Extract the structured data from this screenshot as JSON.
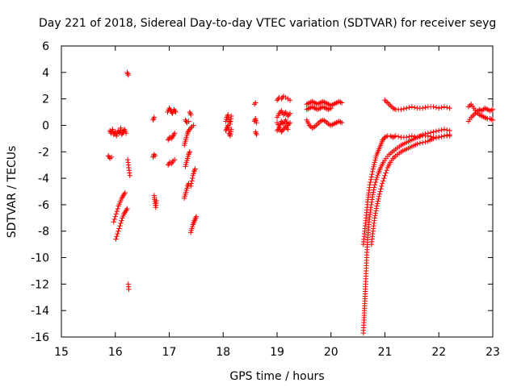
{
  "chart_data": {
    "type": "scatter",
    "title": "Day 221 of 2018, Sidereal Day-to-day VTEC variation (SDTVAR) for receiver seyg",
    "xlabel": "GPS time / hours",
    "ylabel": "SDTVAR / TECUs",
    "xlim": [
      15,
      23
    ],
    "ylim": [
      -16,
      6
    ],
    "xticks": [
      "15",
      "16",
      "17",
      "18",
      "19",
      "20",
      "21",
      "22",
      "23"
    ],
    "yticks": [
      "6",
      "4",
      "2",
      "0",
      "-2",
      "-4",
      "-6",
      "-8",
      "-10",
      "-12",
      "-14",
      "-16"
    ],
    "marker": "plus",
    "color": "#ff0000",
    "segments": [
      {
        "x": [
          15.87,
          15.9,
          15.93
        ],
        "y": [
          -2.3,
          -2.5,
          -2.4
        ]
      },
      {
        "x": [
          15.9,
          15.92,
          15.95,
          15.97,
          16.0,
          16.02,
          16.05,
          16.08,
          16.1,
          16.12,
          16.15,
          16.17,
          16.2
        ],
        "y": [
          -0.4,
          -0.6,
          -0.3,
          -0.7,
          -0.5,
          -0.8,
          -0.4,
          -0.6,
          -0.2,
          -0.7,
          -0.5,
          -0.3,
          -0.6
        ]
      },
      {
        "x": [
          15.97,
          16.0,
          16.03,
          16.06,
          16.09,
          16.12,
          16.15,
          16.18
        ],
        "y": [
          -7.3,
          -6.9,
          -6.5,
          -6.1,
          -5.8,
          -5.5,
          -5.3,
          -5.1
        ]
      },
      {
        "x": [
          16.01,
          16.04,
          16.07,
          16.1,
          16.13,
          16.16,
          16.19,
          16.22
        ],
        "y": [
          -8.6,
          -8.2,
          -7.8,
          -7.4,
          -7.0,
          -6.7,
          -6.5,
          -6.3
        ]
      },
      {
        "x": [
          16.22,
          16.24
        ],
        "y": [
          4.0,
          3.8
        ]
      },
      {
        "x": [
          16.23,
          16.25,
          16.27
        ],
        "y": [
          -2.6,
          -3.2,
          -3.8
        ]
      },
      {
        "x": [
          16.24,
          16.25
        ],
        "y": [
          -12.0,
          -12.4
        ]
      },
      {
        "x": [
          16.7,
          16.72
        ],
        "y": [
          0.4,
          0.6
        ]
      },
      {
        "x": [
          16.7,
          16.72,
          16.74
        ],
        "y": [
          -2.4,
          -2.2,
          -2.3
        ]
      },
      {
        "x": [
          16.72,
          16.73,
          16.74,
          16.75,
          16.76
        ],
        "y": [
          -5.3,
          -5.6,
          -5.9,
          -6.2,
          -5.7
        ]
      },
      {
        "x": [
          16.97,
          17.0,
          17.03,
          17.06,
          17.09,
          17.12
        ],
        "y": [
          1.0,
          1.3,
          1.1,
          0.9,
          1.2,
          1.0
        ]
      },
      {
        "x": [
          16.98,
          17.01,
          17.04,
          17.07,
          17.1
        ],
        "y": [
          -1.1,
          -0.9,
          -1.0,
          -0.8,
          -0.6
        ]
      },
      {
        "x": [
          16.98,
          17.01,
          17.04,
          17.07,
          17.1
        ],
        "y": [
          -3.0,
          -2.8,
          -2.9,
          -2.7,
          -2.6
        ]
      },
      {
        "x": [
          17.28,
          17.3,
          17.32,
          17.34,
          17.36,
          17.38,
          17.4,
          17.42,
          17.45
        ],
        "y": [
          -1.5,
          -1.2,
          -0.9,
          -0.6,
          -0.4,
          -0.3,
          -0.2,
          -0.1,
          0.0
        ]
      },
      {
        "x": [
          17.3,
          17.33,
          17.36
        ],
        "y": [
          0.4,
          0.2,
          0.3
        ]
      },
      {
        "x": [
          17.38,
          17.4
        ],
        "y": [
          1.0,
          0.8
        ]
      },
      {
        "x": [
          17.3,
          17.32,
          17.34,
          17.36,
          17.38
        ],
        "y": [
          -3.1,
          -2.8,
          -2.5,
          -2.2,
          -2.0
        ]
      },
      {
        "x": [
          17.28,
          17.3,
          17.32,
          17.34,
          17.36
        ],
        "y": [
          -5.5,
          -5.2,
          -4.9,
          -4.6,
          -4.4
        ]
      },
      {
        "x": [
          17.4,
          17.42,
          17.44,
          17.46,
          17.48
        ],
        "y": [
          -4.6,
          -4.2,
          -3.8,
          -3.5,
          -3.3
        ]
      },
      {
        "x": [
          17.4,
          17.42,
          17.44,
          17.46,
          17.48,
          17.5
        ],
        "y": [
          -8.1,
          -7.8,
          -7.5,
          -7.3,
          -7.1,
          -6.9
        ]
      },
      {
        "x": [
          18.05,
          18.07,
          18.09,
          18.11,
          18.13,
          18.15
        ],
        "y": [
          0.3,
          0.6,
          0.8,
          0.4,
          0.1,
          0.7
        ]
      },
      {
        "x": [
          18.05,
          18.07,
          18.09,
          18.11,
          18.13,
          18.15
        ],
        "y": [
          -0.4,
          -0.2,
          0.0,
          -0.6,
          -0.8,
          -0.3
        ]
      },
      {
        "x": [
          18.58,
          18.6
        ],
        "y": [
          1.6,
          1.7
        ]
      },
      {
        "x": [
          18.58,
          18.6,
          18.62
        ],
        "y": [
          0.3,
          0.5,
          0.2
        ]
      },
      {
        "x": [
          18.6,
          18.62
        ],
        "y": [
          -0.5,
          -0.7
        ]
      },
      {
        "x": [
          19.0,
          19.04,
          19.08,
          19.12,
          19.16,
          19.2,
          19.24
        ],
        "y": [
          1.9,
          2.1,
          2.0,
          2.2,
          2.1,
          2.0,
          1.9
        ]
      },
      {
        "x": [
          19.0,
          19.04,
          19.08,
          19.12,
          19.16,
          19.2,
          19.24
        ],
        "y": [
          0.6,
          0.9,
          1.1,
          0.8,
          1.0,
          0.7,
          0.9
        ]
      },
      {
        "x": [
          19.0,
          19.04,
          19.08,
          19.12,
          19.16,
          19.2,
          19.24
        ],
        "y": [
          0.2,
          -0.1,
          0.3,
          0.1,
          0.4,
          0.0,
          0.2
        ]
      },
      {
        "x": [
          19.0,
          19.04,
          19.08,
          19.12,
          19.16,
          19.2
        ],
        "y": [
          -0.4,
          -0.2,
          -0.5,
          -0.3,
          -0.1,
          -0.3
        ]
      },
      {
        "x": [
          19.55,
          19.6,
          19.65,
          19.7,
          19.75,
          19.8,
          19.85,
          19.9,
          19.95,
          20.0,
          20.05,
          20.1,
          20.15,
          20.2
        ],
        "y": [
          1.6,
          1.7,
          1.8,
          1.7,
          1.6,
          1.7,
          1.8,
          1.7,
          1.6,
          1.5,
          1.6,
          1.7,
          1.8,
          1.7
        ]
      },
      {
        "x": [
          19.55,
          19.6,
          19.65,
          19.7,
          19.75,
          19.8,
          19.85,
          19.9,
          19.95,
          20.0
        ],
        "y": [
          1.2,
          1.3,
          1.4,
          1.3,
          1.2,
          1.3,
          1.4,
          1.3,
          1.2,
          1.3
        ]
      },
      {
        "x": [
          19.55,
          19.6,
          19.65,
          19.7,
          19.75,
          19.8,
          19.85,
          19.9,
          19.95,
          20.0,
          20.05,
          20.1,
          20.15,
          20.2
        ],
        "y": [
          0.4,
          0.0,
          -0.2,
          -0.1,
          0.1,
          0.3,
          0.4,
          0.3,
          0.1,
          0.0,
          0.1,
          0.2,
          0.3,
          0.2
        ]
      },
      {
        "x": [
          20.6,
          20.62,
          20.64,
          20.66,
          20.68,
          20.7,
          20.72,
          20.75,
          20.78,
          20.81,
          20.84,
          20.88,
          20.92,
          20.96,
          21.0,
          21.05,
          21.1,
          21.15,
          21.2,
          21.3,
          21.4,
          21.5,
          21.6,
          21.7,
          21.8,
          21.9,
          22.0,
          22.1,
          22.2
        ],
        "y": [
          -9.0,
          -8.2,
          -7.4,
          -6.6,
          -5.8,
          -5.1,
          -4.5,
          -3.9,
          -3.3,
          -2.8,
          -2.3,
          -1.9,
          -1.5,
          -1.1,
          -0.9,
          -0.8,
          -0.8,
          -0.9,
          -0.8,
          -0.9,
          -0.9,
          -0.8,
          -0.9,
          -0.8,
          -0.8,
          -0.9,
          -0.9,
          -0.8,
          -0.8
        ]
      },
      {
        "x": [
          20.6,
          20.61,
          20.62,
          20.63,
          20.64,
          20.65,
          20.66,
          20.67,
          20.69,
          20.71,
          20.74,
          20.77,
          20.8,
          20.84,
          20.88,
          20.92,
          20.97,
          21.02,
          21.08,
          21.14,
          21.2,
          21.3,
          21.4,
          21.5,
          21.6,
          21.7,
          21.8,
          21.9,
          22.0,
          22.1,
          22.2
        ],
        "y": [
          -15.7,
          -14.9,
          -14.0,
          -13.1,
          -12.2,
          -11.2,
          -10.2,
          -9.2,
          -8.1,
          -7.1,
          -6.2,
          -5.4,
          -4.7,
          -4.1,
          -3.6,
          -3.2,
          -2.8,
          -2.5,
          -2.2,
          -2.0,
          -1.8,
          -1.5,
          -1.3,
          -1.1,
          -0.9,
          -0.7,
          -0.6,
          -0.5,
          -0.4,
          -0.3,
          -0.4
        ]
      },
      {
        "x": [
          20.75,
          20.78,
          20.81,
          20.85,
          20.9,
          20.95,
          21.0,
          21.05,
          21.1,
          21.15,
          21.2,
          21.3,
          21.4,
          21.5,
          21.6,
          21.7,
          21.8,
          21.9,
          22.0,
          22.1,
          22.2
        ],
        "y": [
          -9.0,
          -8.0,
          -7.0,
          -6.1,
          -5.2,
          -4.4,
          -3.8,
          -3.2,
          -2.8,
          -2.5,
          -2.3,
          -2.0,
          -1.8,
          -1.6,
          -1.4,
          -1.3,
          -1.2,
          -1.0,
          -0.9,
          -0.8,
          -0.7
        ]
      },
      {
        "x": [
          21.0,
          21.05,
          21.1,
          21.15,
          21.2,
          21.3,
          21.4,
          21.5,
          21.6,
          21.7,
          21.8,
          21.9,
          22.0,
          22.1,
          22.2
        ],
        "y": [
          1.9,
          1.7,
          1.5,
          1.3,
          1.2,
          1.2,
          1.3,
          1.4,
          1.3,
          1.3,
          1.4,
          1.4,
          1.3,
          1.4,
          1.3
        ]
      },
      {
        "x": [
          22.55,
          22.6,
          22.65,
          22.7,
          22.75,
          22.8,
          22.85,
          22.9,
          22.95,
          23.0
        ],
        "y": [
          1.4,
          1.6,
          1.3,
          1.0,
          1.2,
          1.1,
          1.3,
          1.2,
          1.1,
          1.2
        ]
      },
      {
        "x": [
          22.55,
          22.6,
          22.65,
          22.7,
          22.75,
          22.8,
          22.85,
          22.9,
          22.95,
          23.0
        ],
        "y": [
          0.3,
          0.6,
          0.8,
          1.0,
          0.8,
          0.7,
          0.6,
          0.5,
          0.5,
          0.4
        ]
      }
    ]
  }
}
